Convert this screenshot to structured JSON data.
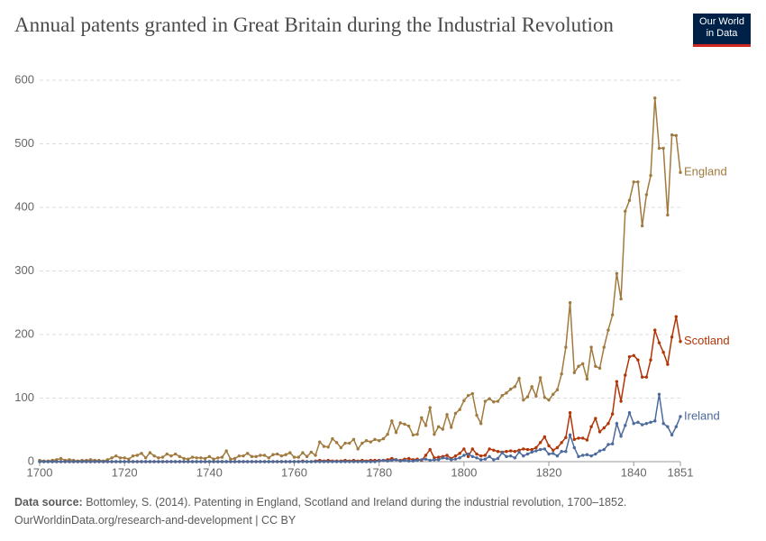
{
  "chart_data": {
    "type": "line",
    "title": "Annual patents granted in Great Britain during the Industrial Revolution",
    "logo": [
      "Our World",
      "in Data"
    ],
    "source_label": "Data source:",
    "source": "Bottomley, S. (2014). Patenting in England, Scotland and Ireland during the industrial revolution, 1700–1852.",
    "footer": "OurWorldinData.org/research-and-development | CC BY",
    "x": [
      1700,
      1701,
      1702,
      1703,
      1704,
      1705,
      1706,
      1707,
      1708,
      1709,
      1710,
      1711,
      1712,
      1713,
      1714,
      1715,
      1716,
      1717,
      1718,
      1719,
      1720,
      1721,
      1722,
      1723,
      1724,
      1725,
      1726,
      1727,
      1728,
      1729,
      1730,
      1731,
      1732,
      1733,
      1734,
      1735,
      1736,
      1737,
      1738,
      1739,
      1740,
      1741,
      1742,
      1743,
      1744,
      1745,
      1746,
      1747,
      1748,
      1749,
      1750,
      1751,
      1752,
      1753,
      1754,
      1755,
      1756,
      1757,
      1758,
      1759,
      1760,
      1761,
      1762,
      1763,
      1764,
      1765,
      1766,
      1767,
      1768,
      1769,
      1770,
      1771,
      1772,
      1773,
      1774,
      1775,
      1776,
      1777,
      1778,
      1779,
      1780,
      1781,
      1782,
      1783,
      1784,
      1785,
      1786,
      1787,
      1788,
      1789,
      1790,
      1791,
      1792,
      1793,
      1794,
      1795,
      1796,
      1797,
      1798,
      1799,
      1800,
      1801,
      1802,
      1803,
      1804,
      1805,
      1806,
      1807,
      1808,
      1809,
      1810,
      1811,
      1812,
      1813,
      1814,
      1815,
      1816,
      1817,
      1818,
      1819,
      1820,
      1821,
      1822,
      1823,
      1824,
      1825,
      1826,
      1827,
      1828,
      1829,
      1830,
      1831,
      1832,
      1833,
      1834,
      1835,
      1836,
      1837,
      1838,
      1839,
      1840,
      1841,
      1842,
      1843,
      1844,
      1845,
      1846,
      1847,
      1848,
      1849,
      1850,
      1851
    ],
    "series": [
      {
        "name": "England",
        "color": "#a07a3e",
        "values": [
          2,
          1,
          1,
          2,
          3,
          5,
          2,
          3,
          2,
          1,
          2,
          2,
          3,
          2,
          2,
          1,
          3,
          6,
          9,
          6,
          6,
          4,
          9,
          10,
          13,
          6,
          14,
          9,
          6,
          7,
          12,
          9,
          12,
          8,
          5,
          4,
          7,
          6,
          6,
          5,
          8,
          4,
          6,
          7,
          17,
          4,
          5,
          9,
          9,
          13,
          8,
          8,
          10,
          10,
          6,
          11,
          12,
          9,
          11,
          14,
          7,
          7,
          14,
          8,
          15,
          10,
          31,
          24,
          23,
          36,
          30,
          22,
          29,
          29,
          35,
          20,
          29,
          33,
          31,
          35,
          33,
          36,
          43,
          64,
          46,
          61,
          59,
          56,
          42,
          43,
          69,
          57,
          85,
          43,
          55,
          51,
          74,
          54,
          76,
          82,
          96,
          104,
          107,
          73,
          60,
          95,
          99,
          94,
          95,
          104,
          108,
          114,
          118,
          131,
          97,
          102,
          118,
          103,
          132,
          101,
          97,
          106,
          113,
          138,
          180,
          250,
          140,
          150,
          154,
          130,
          180,
          150,
          147,
          180,
          207,
          231,
          296,
          256,
          394,
          411,
          440,
          440,
          371,
          420,
          450,
          572,
          493,
          493,
          388,
          514,
          513,
          455
        ]
      },
      {
        "name": "Scotland",
        "color": "#b13507",
        "values": [
          0,
          0,
          0,
          0,
          0,
          0,
          0,
          0,
          0,
          0,
          0,
          0,
          0,
          0,
          0,
          0,
          0,
          0,
          0,
          0,
          0,
          0,
          0,
          0,
          0,
          0,
          0,
          0,
          0,
          0,
          0,
          0,
          0,
          0,
          0,
          0,
          0,
          0,
          0,
          0,
          0,
          0,
          0,
          0,
          0,
          0,
          0,
          0,
          0,
          0,
          0,
          0,
          0,
          0,
          0,
          0,
          0,
          0,
          0,
          0,
          0,
          0,
          1,
          0,
          0,
          1,
          2,
          1,
          2,
          1,
          1,
          1,
          2,
          1,
          2,
          1,
          2,
          1,
          2,
          2,
          2,
          2,
          3,
          5,
          3,
          2,
          4,
          5,
          3,
          4,
          2,
          10,
          19,
          6,
          7,
          8,
          10,
          5,
          9,
          13,
          20,
          8,
          20,
          12,
          9,
          10,
          20,
          18,
          16,
          15,
          16,
          17,
          16,
          18,
          20,
          19,
          19,
          22,
          30,
          39,
          25,
          18,
          22,
          30,
          38,
          77,
          35,
          37,
          37,
          34,
          55,
          68,
          47,
          53,
          60,
          75,
          126,
          95,
          136,
          165,
          167,
          160,
          133,
          133,
          160,
          207,
          187,
          172,
          153,
          196,
          228,
          189
        ]
      },
      {
        "name": "Ireland",
        "color": "#4c6a9c",
        "values": [
          0,
          0,
          0,
          0,
          0,
          0,
          0,
          0,
          0,
          0,
          0,
          0,
          0,
          0,
          0,
          0,
          0,
          0,
          0,
          0,
          0,
          0,
          0,
          0,
          0,
          0,
          0,
          0,
          0,
          0,
          0,
          0,
          0,
          0,
          0,
          0,
          0,
          0,
          0,
          0,
          0,
          0,
          0,
          0,
          0,
          0,
          0,
          0,
          0,
          0,
          0,
          0,
          0,
          0,
          0,
          0,
          0,
          0,
          0,
          0,
          0,
          0,
          0,
          0,
          0,
          0,
          0,
          0,
          0,
          0,
          0,
          0,
          0,
          0,
          0,
          0,
          0,
          0,
          0,
          0,
          1,
          2,
          1,
          2,
          3,
          1,
          2,
          1,
          1,
          2,
          3,
          4,
          2,
          3,
          3,
          6,
          5,
          3,
          4,
          6,
          10,
          12,
          8,
          6,
          3,
          4,
          8,
          3,
          5,
          14,
          8,
          9,
          6,
          15,
          9,
          12,
          15,
          17,
          19,
          20,
          12,
          13,
          9,
          16,
          16,
          42,
          22,
          8,
          10,
          11,
          9,
          12,
          17,
          19,
          27,
          28,
          60,
          40,
          57,
          77,
          60,
          62,
          58,
          60,
          62,
          64,
          106,
          60,
          55,
          42,
          55,
          71
        ]
      }
    ],
    "xlim": [
      1700,
      1851
    ],
    "xticks": [
      1700,
      1720,
      1740,
      1760,
      1780,
      1800,
      1820,
      1840,
      1851
    ],
    "ylim": [
      0,
      600
    ],
    "yticks": [
      0,
      100,
      200,
      300,
      400,
      500,
      600
    ],
    "grid": true
  }
}
